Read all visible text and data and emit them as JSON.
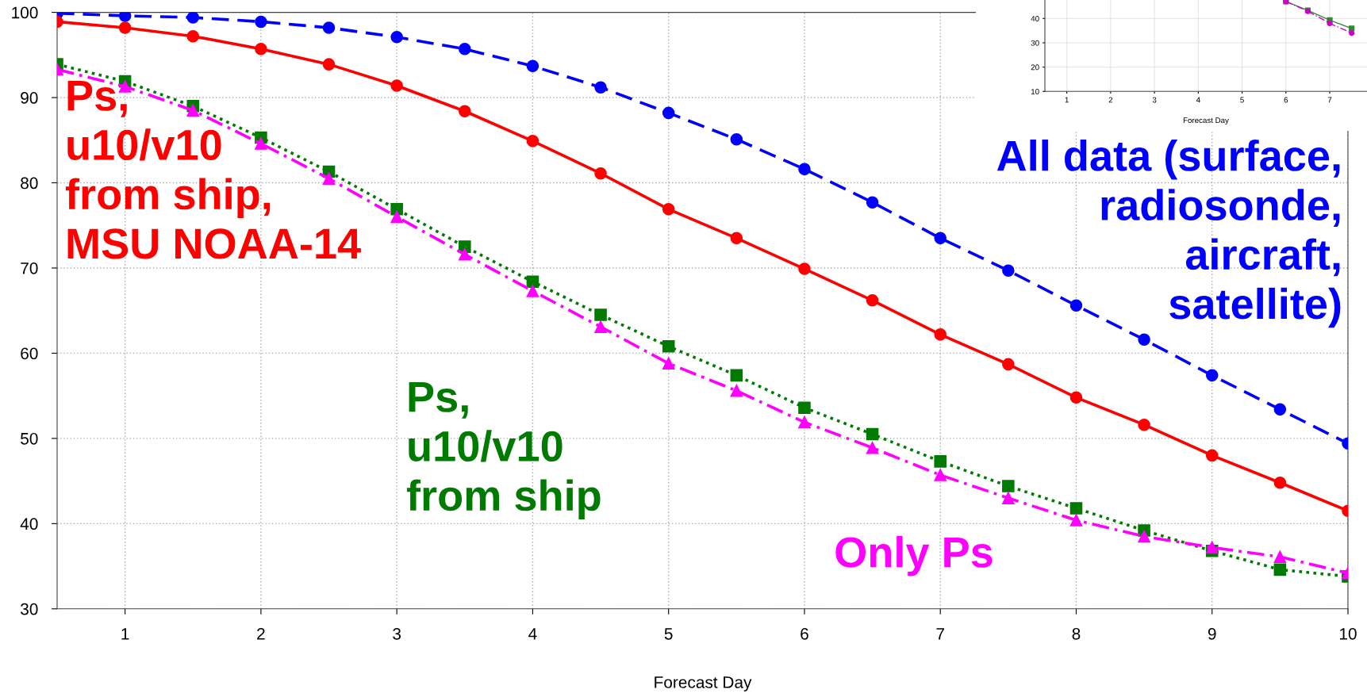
{
  "chart_data": [
    {
      "type": "line",
      "xlabel": "Forecast Day",
      "x": [
        0.5,
        1,
        1.5,
        2,
        2.5,
        3,
        3.5,
        4,
        4.5,
        5,
        5.5,
        6,
        6.5,
        7,
        7.5,
        8,
        8.5,
        9,
        9.5,
        10
      ],
      "xlim": [
        0.5,
        10
      ],
      "xticks": [
        1,
        2,
        3,
        4,
        5,
        6,
        7,
        8,
        9,
        10
      ],
      "ylim": [
        30,
        100
      ],
      "yticks": [
        30,
        40,
        50,
        60,
        70,
        80,
        90,
        100
      ],
      "grid": true,
      "legend": false,
      "series": [
        {
          "name": "All data (surface,\nradiosonde,\naircraft,\nsatellite)",
          "color": "#0000ff",
          "marker": "circle",
          "line_style": "dashed",
          "values": [
            99.9,
            99.6,
            99.4,
            98.9,
            98.2,
            97.1,
            95.7,
            93.7,
            91.2,
            88.2,
            85.1,
            81.6,
            77.7,
            73.5,
            69.7,
            65.6,
            61.6,
            57.4,
            53.4,
            49.4
          ]
        },
        {
          "name": "Ps,\nu10/v10\nfrom ship,\nMSU NOAA-14",
          "color": "#ff0000",
          "marker": "circle",
          "line_style": "solid",
          "values": [
            98.9,
            98.2,
            97.2,
            95.7,
            93.9,
            91.4,
            88.4,
            84.9,
            81.1,
            76.9,
            73.5,
            69.9,
            66.2,
            62.2,
            58.7,
            54.8,
            51.6,
            48.0,
            44.8,
            41.5
          ]
        },
        {
          "name": "Ps,\nu10/v10\nfrom ship",
          "color": "#007a00",
          "marker": "square",
          "line_style": "dotted",
          "values": [
            93.9,
            91.9,
            89.0,
            85.3,
            81.3,
            76.9,
            72.5,
            68.4,
            64.5,
            60.8,
            57.4,
            53.6,
            50.5,
            47.3,
            44.4,
            41.8,
            39.2,
            36.8,
            34.6,
            33.8
          ]
        },
        {
          "name": "Only Ps",
          "color": "#ff00ff",
          "marker": "triangle",
          "line_style": "dashdot",
          "values": [
            93.3,
            91.3,
            88.5,
            84.6,
            80.5,
            76.0,
            71.6,
            67.3,
            63.1,
            58.8,
            55.6,
            51.9,
            48.9,
            45.7,
            43.0,
            40.4,
            38.5,
            37.2,
            36.1,
            34.2
          ]
        }
      ]
    },
    {
      "type": "line",
      "xlabel": "Forecast Day",
      "x": [
        6,
        6.5,
        7,
        7.5
      ],
      "xlim": [
        0.5,
        7.85
      ],
      "xticks": [
        1,
        2,
        3,
        4,
        5,
        6,
        7
      ],
      "ylim": [
        10,
        47.6
      ],
      "yticks": [
        10,
        20,
        30,
        40
      ],
      "grid": true,
      "legend": false,
      "series": [
        {
          "color": "#2e8b2e",
          "marker": "square",
          "line_style": "solid",
          "values": [
            47.0,
            43.3,
            39.3,
            35.9
          ]
        },
        {
          "color": "#cc00cc",
          "marker": "circle",
          "line_style": "dashdot",
          "values": [
            47.0,
            43.0,
            38.0,
            34.0
          ]
        }
      ]
    }
  ]
}
